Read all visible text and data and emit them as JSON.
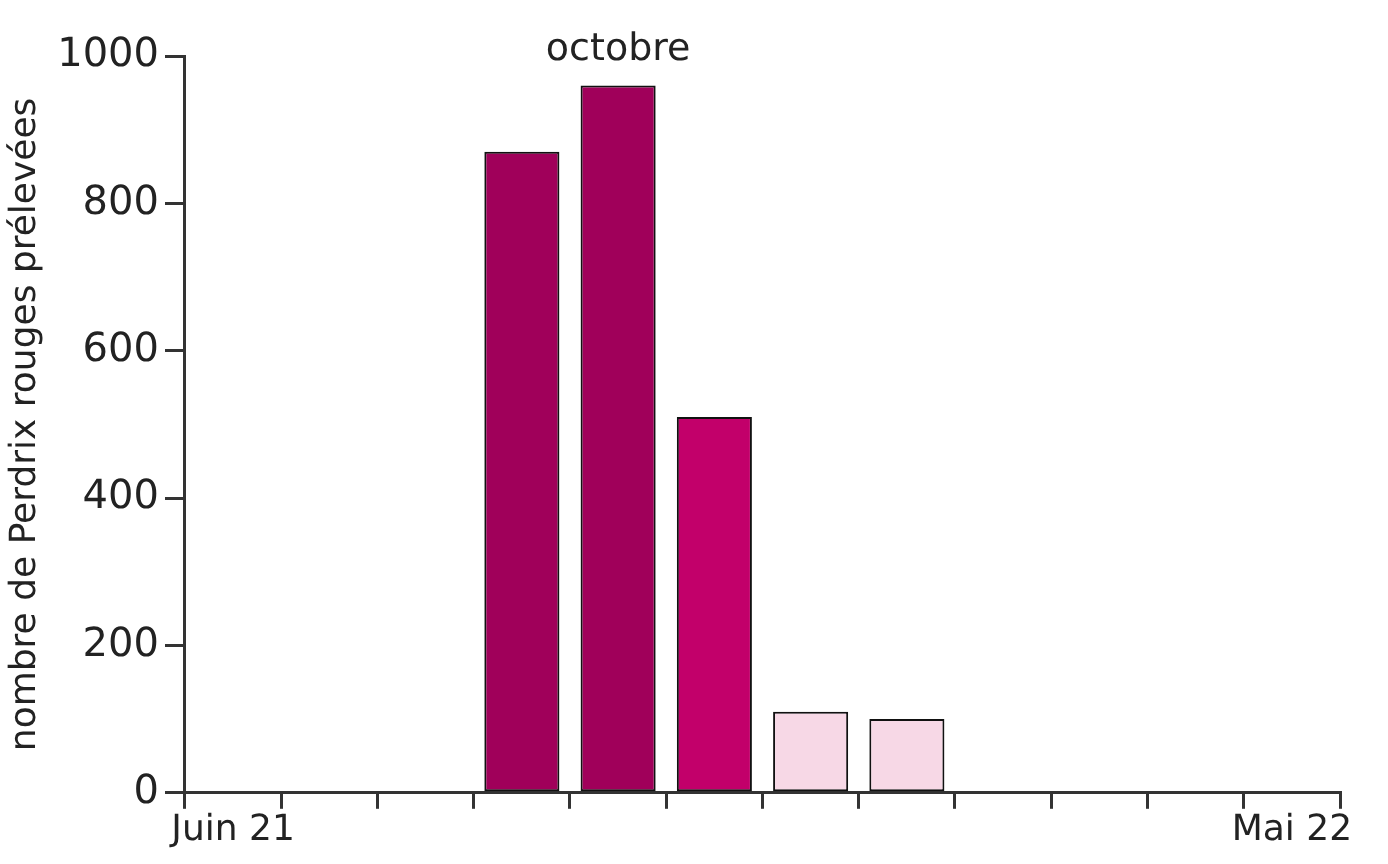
{
  "chart_data": {
    "type": "bar",
    "ylabel": "nombre de Perdrix rouges prélevées",
    "categories": [
      "Juin 21",
      null,
      null,
      null,
      null,
      null,
      null,
      null,
      null,
      null,
      null,
      "Mai 22"
    ],
    "values": [
      0,
      0,
      0,
      870,
      960,
      510,
      110,
      100,
      2,
      0,
      0,
      0
    ],
    "colors": [
      "#a0005a",
      "#a0005a",
      "#a0005a",
      "#a0005a",
      "#a0005a",
      "#c2006a",
      "#f7d8e6",
      "#f7d8e6",
      "#111111",
      "#f7d8e6",
      "#f7d8e6",
      "#f7d8e6"
    ],
    "ylim": [
      0,
      1000
    ],
    "yticks": [
      0,
      200,
      400,
      600,
      800,
      1000
    ],
    "grid": false,
    "legend": false,
    "annotations": [
      "octobre"
    ]
  }
}
